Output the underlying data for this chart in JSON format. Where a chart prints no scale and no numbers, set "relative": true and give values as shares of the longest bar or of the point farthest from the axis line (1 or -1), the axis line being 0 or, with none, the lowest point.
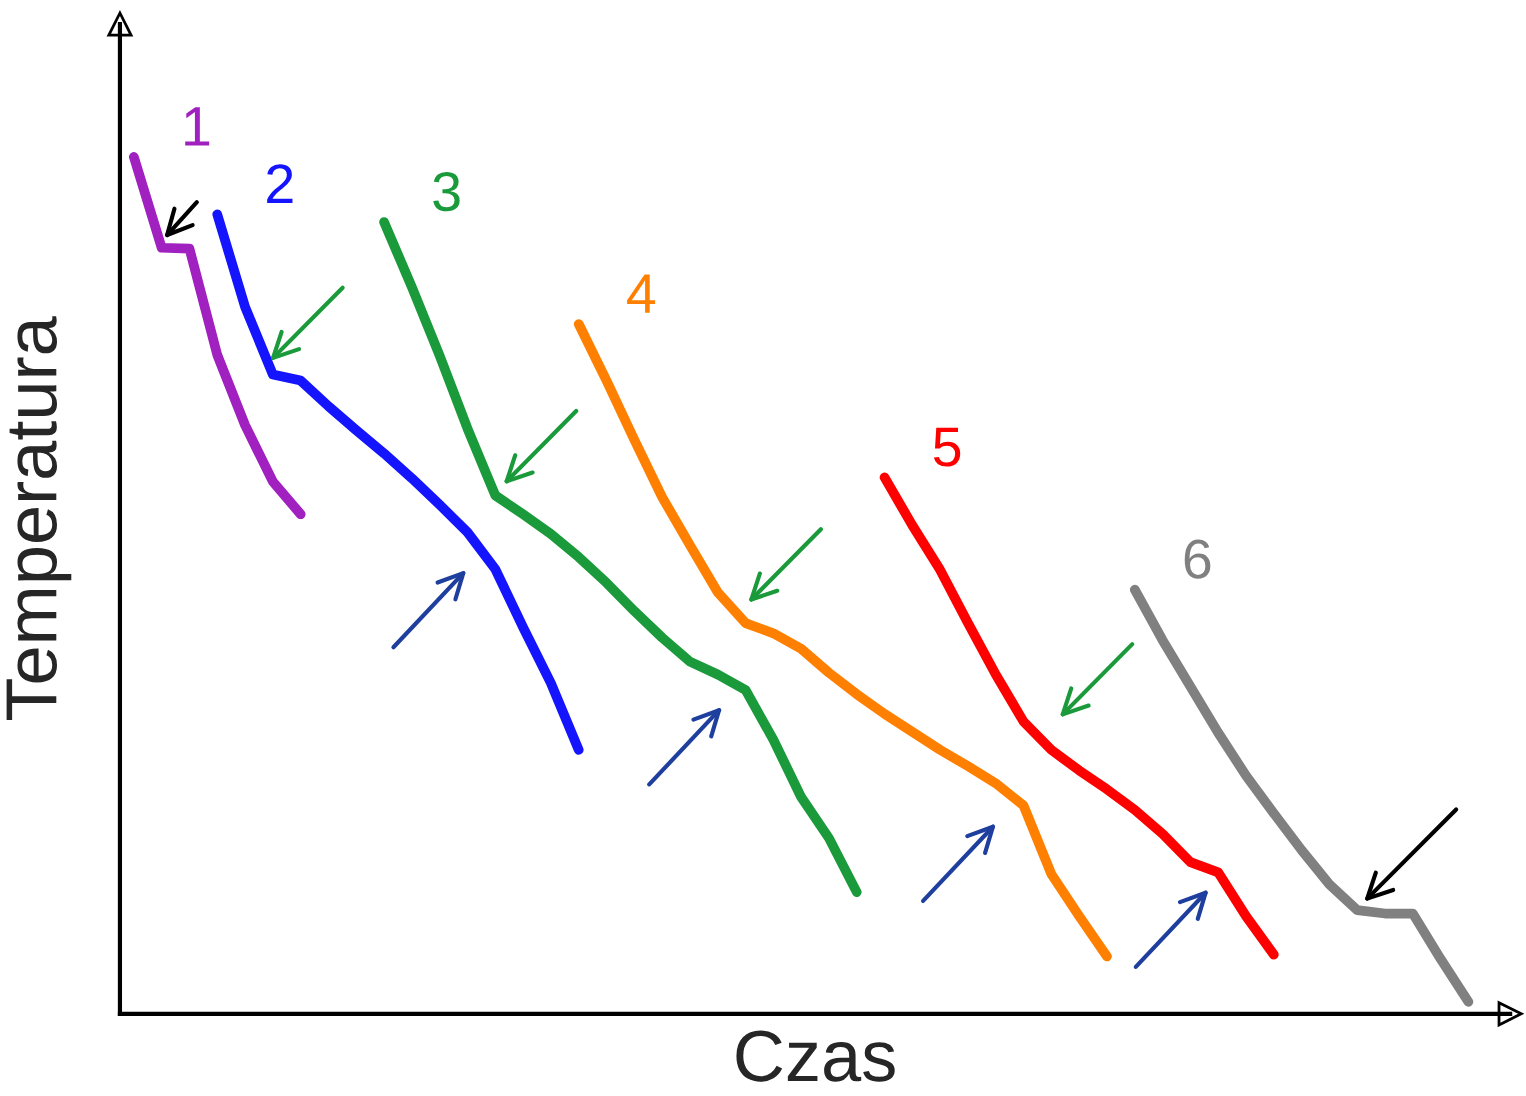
{
  "chart_data": {
    "type": "line",
    "relative": true,
    "xlabel": "Czas",
    "ylabel": "Temperatura",
    "marker": "none",
    "line_style": "solid",
    "categories": [
      null,
      null,
      null,
      null,
      null,
      null,
      null,
      null,
      null,
      null,
      null,
      null,
      null,
      null,
      null,
      null,
      null,
      null,
      null,
      null,
      null,
      null,
      null,
      null,
      null,
      null,
      null,
      null,
      null,
      null,
      null,
      null,
      null,
      null,
      null,
      null,
      null,
      null,
      null,
      null,
      null,
      null,
      null,
      null,
      null,
      null,
      null,
      null,
      null,
      null
    ],
    "series": [
      {
        "name": "1",
        "color": "#a020c0",
        "values": [
          1.0,
          0.894,
          0.893,
          0.769,
          0.687,
          0.621,
          0.583,
          null,
          null,
          null,
          null,
          null,
          null,
          null,
          null,
          null,
          null,
          null,
          null,
          null,
          null,
          null,
          null,
          null,
          null,
          null,
          null,
          null,
          null,
          null,
          null,
          null,
          null,
          null,
          null,
          null,
          null,
          null,
          null,
          null,
          null,
          null,
          null,
          null,
          null,
          null,
          null,
          null,
          null,
          null
        ]
      },
      {
        "name": "2",
        "color": "#1414ff",
        "values": [
          null,
          null,
          null,
          0.933,
          0.825,
          0.746,
          0.739,
          0.709,
          0.681,
          0.654,
          0.625,
          0.594,
          0.562,
          0.519,
          0.451,
          0.386,
          0.308,
          null,
          null,
          null,
          null,
          null,
          null,
          null,
          null,
          null,
          null,
          null,
          null,
          null,
          null,
          null,
          null,
          null,
          null,
          null,
          null,
          null,
          null,
          null,
          null,
          null,
          null,
          null,
          null,
          null,
          null,
          null,
          null,
          null
        ]
      },
      {
        "name": "3",
        "color": "#1a9a3a",
        "values": [
          null,
          null,
          null,
          null,
          null,
          null,
          null,
          null,
          null,
          0.924,
          0.848,
          0.768,
          0.683,
          0.605,
          0.583,
          0.56,
          0.533,
          0.503,
          0.47,
          0.439,
          0.411,
          0.396,
          0.378,
          0.32,
          0.253,
          0.205,
          0.142,
          null,
          null,
          null,
          null,
          null,
          null,
          null,
          null,
          null,
          null,
          null,
          null,
          null,
          null,
          null,
          null,
          null,
          null,
          null,
          null,
          null,
          null,
          null
        ]
      },
      {
        "name": "4",
        "color": "#ff8000",
        "values": [
          null,
          null,
          null,
          null,
          null,
          null,
          null,
          null,
          null,
          null,
          null,
          null,
          null,
          null,
          null,
          null,
          0.805,
          0.739,
          0.67,
          0.603,
          0.547,
          0.492,
          0.456,
          0.444,
          0.426,
          0.398,
          0.373,
          0.35,
          0.329,
          0.308,
          0.289,
          0.269,
          0.243,
          0.163,
          0.114,
          0.067,
          null,
          null,
          null,
          null,
          null,
          null,
          null,
          null,
          null,
          null,
          null,
          null,
          null,
          null
        ]
      },
      {
        "name": "5",
        "color": "#ff0000",
        "values": [
          null,
          null,
          null,
          null,
          null,
          null,
          null,
          null,
          null,
          null,
          null,
          null,
          null,
          null,
          null,
          null,
          null,
          null,
          null,
          null,
          null,
          null,
          null,
          null,
          null,
          null,
          null,
          0.626,
          0.57,
          0.518,
          0.456,
          0.396,
          0.341,
          0.308,
          0.284,
          0.262,
          0.238,
          0.21,
          0.177,
          0.165,
          0.114,
          0.069,
          null,
          null,
          null,
          null,
          null,
          null,
          null,
          null
        ]
      },
      {
        "name": "6",
        "color": "#808080",
        "values": [
          null,
          null,
          null,
          null,
          null,
          null,
          null,
          null,
          null,
          null,
          null,
          null,
          null,
          null,
          null,
          null,
          null,
          null,
          null,
          null,
          null,
          null,
          null,
          null,
          null,
          null,
          null,
          null,
          null,
          null,
          null,
          null,
          null,
          null,
          null,
          null,
          0.495,
          0.436,
          0.382,
          0.328,
          0.278,
          0.234,
          0.191,
          0.151,
          0.121,
          0.117,
          0.117,
          0.064,
          0.014,
          null
        ]
      }
    ]
  }
}
